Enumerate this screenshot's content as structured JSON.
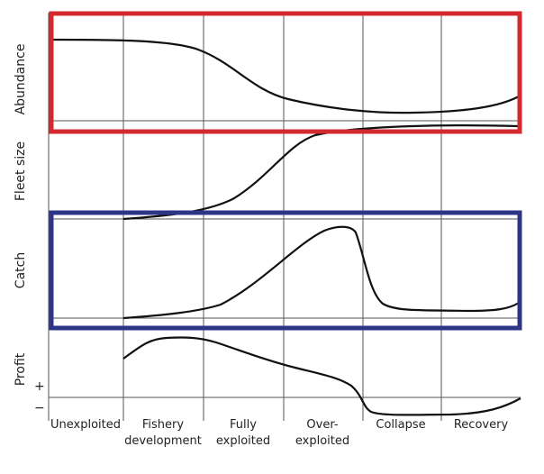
{
  "panels": [
    {
      "label": "Abundance"
    },
    {
      "label": "Fleet size"
    },
    {
      "label": "Catch"
    },
    {
      "label": "Profit",
      "plus": "+",
      "minus": "−"
    }
  ],
  "phases": [
    {
      "line1": "Unexploited",
      "line2": ""
    },
    {
      "line1": "Fishery",
      "line2": "development"
    },
    {
      "line1": "Fully",
      "line2": "exploited"
    },
    {
      "line1": "Over-",
      "line2": "exploited"
    },
    {
      "line1": "Collapse",
      "line2": ""
    },
    {
      "line1": "Recovery",
      "line2": ""
    }
  ],
  "highlights": {
    "abundance_box_color": "#d42a2f",
    "catch_box_color": "#2e3586"
  }
}
